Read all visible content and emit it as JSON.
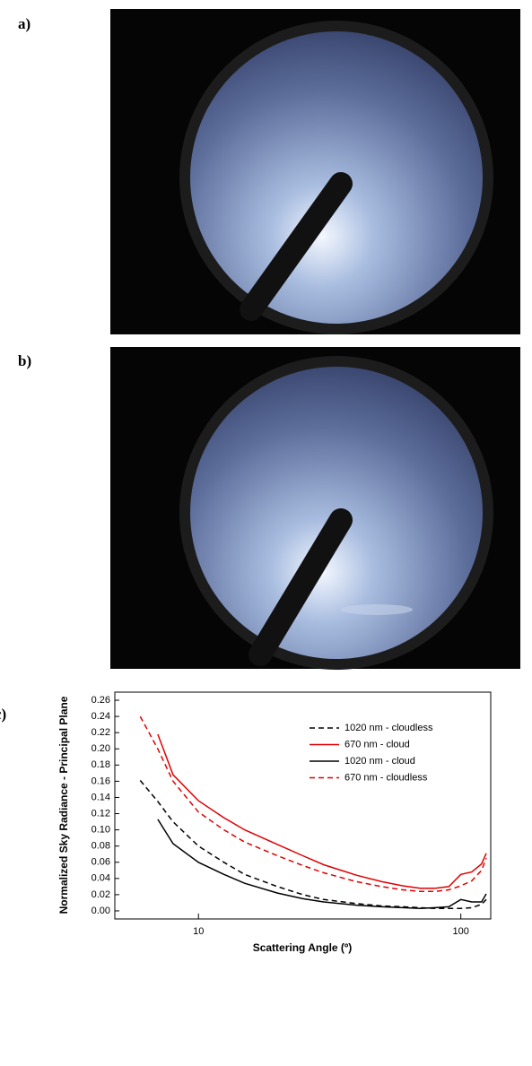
{
  "panels": {
    "labels": [
      "a)",
      "b)",
      "c)"
    ]
  },
  "chart_data": {
    "type": "line",
    "x_label": "Scattering Angle (º)",
    "y_label": "Normalized Sky Radiance - Principal Plane",
    "log_x": true,
    "x": [
      6,
      7,
      8,
      10,
      12.5,
      15,
      20,
      25,
      30,
      40,
      50,
      60,
      70,
      80,
      90,
      100,
      110,
      120,
      125
    ],
    "xlim": [
      4.8,
      130
    ],
    "xticks": [
      10,
      100
    ],
    "ylim": [
      -0.01,
      0.27
    ],
    "yticks": [
      {
        "value": 0,
        "label": "0.00"
      },
      {
        "value": 0.02,
        "label": "0.02"
      },
      {
        "value": 0.04,
        "label": "0.04"
      },
      {
        "value": 0.06,
        "label": "0.06"
      },
      {
        "value": 0.08,
        "label": "0.08"
      },
      {
        "value": 0.1,
        "label": "0.10"
      },
      {
        "value": 0.12,
        "label": "0.12"
      },
      {
        "value": 0.14,
        "label": "0.14"
      },
      {
        "value": 0.16,
        "label": "0.16"
      },
      {
        "value": 0.18,
        "label": "0.18"
      },
      {
        "value": 0.2,
        "label": "0.20"
      },
      {
        "value": 0.22,
        "label": "0.22"
      },
      {
        "value": 0.24,
        "label": "0.24"
      },
      {
        "value": 0.26,
        "label": "0.26"
      }
    ],
    "series": [
      {
        "name": "1020 nm - cloudless",
        "color": "#000000",
        "dash": true,
        "values": [
          0.161,
          0.135,
          0.11,
          0.08,
          0.06,
          0.045,
          0.03,
          0.02,
          0.014,
          0.009,
          0.006,
          0.005,
          0.004,
          0.003,
          0.003,
          0.003,
          0.004,
          0.008,
          0.014
        ]
      },
      {
        "name": "670 nm - cloud",
        "color": "#e00000",
        "dash": false,
        "values": [
          null,
          0.218,
          0.168,
          0.136,
          0.115,
          0.1,
          0.082,
          0.068,
          0.057,
          0.044,
          0.036,
          0.031,
          0.028,
          0.028,
          0.03,
          0.045,
          0.048,
          0.058,
          0.071
        ]
      },
      {
        "name": "1020 nm - cloud",
        "color": "#000000",
        "dash": false,
        "values": [
          null,
          0.113,
          0.083,
          0.06,
          0.045,
          0.034,
          0.022,
          0.015,
          0.011,
          0.007,
          0.005,
          0.004,
          0.003,
          0.004,
          0.005,
          0.014,
          0.011,
          0.011,
          0.021
        ]
      },
      {
        "name": "670 nm - cloudless",
        "color": "#e00000",
        "dash": true,
        "values": [
          0.24,
          0.2,
          0.16,
          0.122,
          0.1,
          0.085,
          0.068,
          0.056,
          0.047,
          0.036,
          0.03,
          0.026,
          0.024,
          0.024,
          0.026,
          0.031,
          0.037,
          0.05,
          0.065
        ]
      }
    ]
  }
}
